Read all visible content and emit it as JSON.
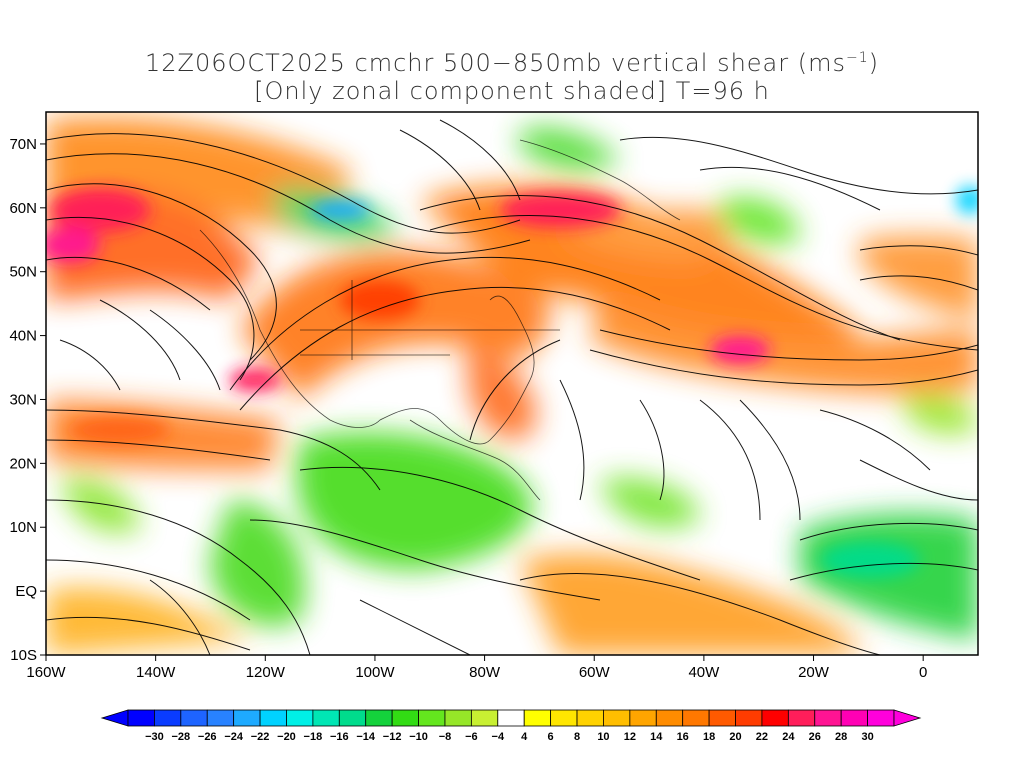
{
  "title": {
    "line1": "12Z06OCT2025 cmchr 500−850mb vertical shear (ms",
    "unit_sup": "−1",
    "line1_end": ")",
    "line2": "[Only zonal component shaded] T=96 h"
  },
  "map": {
    "lon_range": [
      -160,
      10
    ],
    "lat_range": [
      -10,
      75
    ],
    "lon_ticks": [
      {
        "value": -160,
        "label": "160W"
      },
      {
        "value": -140,
        "label": "140W"
      },
      {
        "value": -120,
        "label": "120W"
      },
      {
        "value": -100,
        "label": "100W"
      },
      {
        "value": -80,
        "label": "80W"
      },
      {
        "value": -60,
        "label": "60W"
      },
      {
        "value": -40,
        "label": "40W"
      },
      {
        "value": -20,
        "label": "20W"
      },
      {
        "value": 0,
        "label": "0"
      }
    ],
    "lat_ticks": [
      {
        "value": 70,
        "label": "70N"
      },
      {
        "value": 60,
        "label": "60N"
      },
      {
        "value": 50,
        "label": "50N"
      },
      {
        "value": 40,
        "label": "40N"
      },
      {
        "value": 30,
        "label": "30N"
      },
      {
        "value": 20,
        "label": "20N"
      },
      {
        "value": 10,
        "label": "10N"
      },
      {
        "value": 0,
        "label": "EQ"
      },
      {
        "value": -10,
        "label": "10S"
      }
    ]
  },
  "colorbar": {
    "levels": [
      -30,
      -28,
      -26,
      -24,
      -22,
      -20,
      -18,
      -16,
      -14,
      -12,
      -10,
      -8,
      -6,
      -4,
      4,
      6,
      8,
      10,
      12,
      14,
      16,
      18,
      20,
      22,
      24,
      26,
      28,
      30
    ],
    "labels": [
      "−30",
      "−28",
      "−26",
      "−24",
      "−22",
      "−20",
      "−18",
      "−16",
      "−14",
      "−12",
      "−10",
      "−8",
      "−6",
      "−4",
      "4",
      "6",
      "8",
      "10",
      "12",
      "14",
      "16",
      "18",
      "20",
      "22",
      "24",
      "26",
      "28",
      "30"
    ],
    "colors": [
      "#0000ff",
      "#0a3cff",
      "#1e64ff",
      "#2882ff",
      "#1eaaff",
      "#00d2ff",
      "#00f0e6",
      "#00e6b4",
      "#00dc8c",
      "#14d23c",
      "#32dc14",
      "#64e61e",
      "#96e628",
      "#c8f032",
      "#ffffff",
      "#ffff00",
      "#ffe600",
      "#ffd200",
      "#ffbe00",
      "#ffa500",
      "#ff8c00",
      "#ff7800",
      "#ff5a00",
      "#ff3c00",
      "#ff0000",
      "#ff1e5a",
      "#ff1493",
      "#ff00b4",
      "#ff00dc"
    ]
  }
}
